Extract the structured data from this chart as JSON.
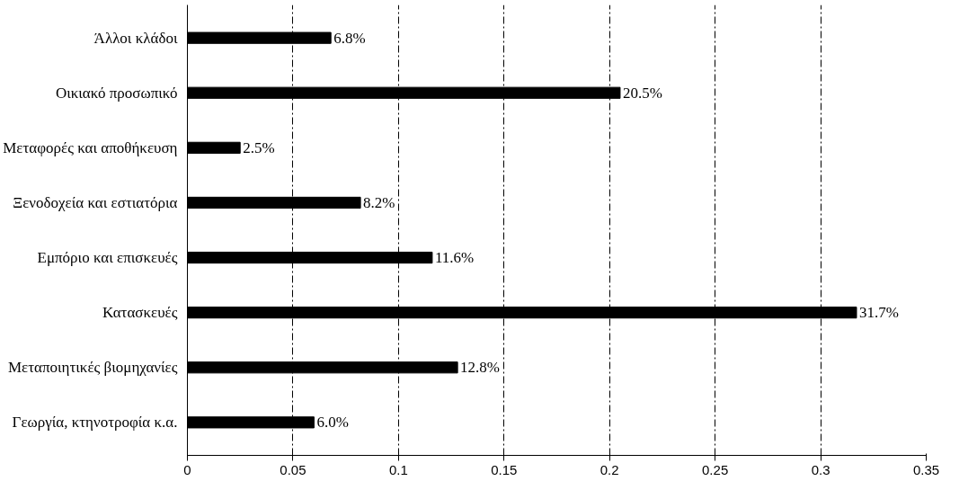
{
  "chart_data": {
    "type": "bar",
    "orientation": "horizontal",
    "categories": [
      "Άλλοι κλάδοι",
      "Οικιακό προσωπικό",
      "Μεταφορές και αποθήκευση",
      "Ξενοδοχεία και εστιατόρια",
      "Εμπόριο και επισκευές",
      "Κατασκευές",
      "Μεταποιητικές βιομηχανίες",
      "Γεωργία, κτηνοτροφία κ.α."
    ],
    "values": [
      0.068,
      0.205,
      0.025,
      0.082,
      0.116,
      0.317,
      0.128,
      0.06
    ],
    "value_labels": [
      "6.8%",
      "20.5%",
      "2.5%",
      "8.2%",
      "11.6%",
      "31.7%",
      "12.8%",
      "6.0%"
    ],
    "color": "#000000",
    "xlim": [
      0,
      0.35
    ],
    "xticks": [
      0,
      0.05,
      0.1,
      0.15,
      0.2,
      0.25,
      0.3,
      0.35
    ],
    "grid": "x"
  }
}
